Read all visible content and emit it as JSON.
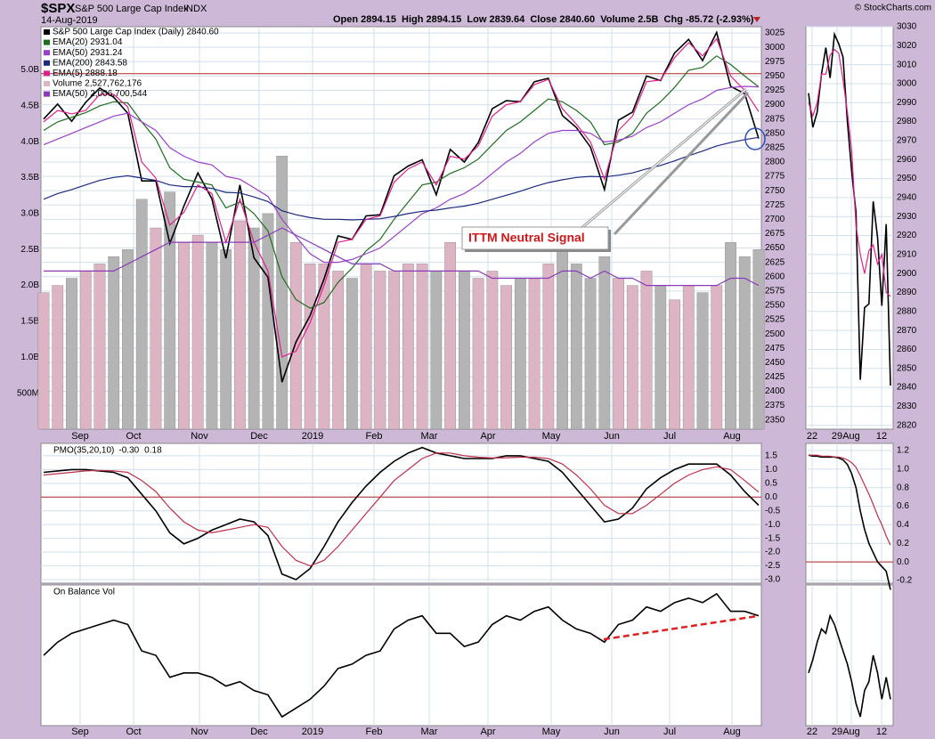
{
  "header": {
    "symbol": "$SPX",
    "name": "S&P 500 Large Cap Index",
    "exchange": "INDX",
    "date": "14-Aug-2019",
    "quote": "Open 2894.15  High 2894.15  Low 2839.64  Close 2840.60  Volume 2.5B  Chg -85.72 (-2.93%)",
    "credit": "© StockCharts.com"
  },
  "annotation": "ITTM Neutral Signal",
  "chart_data": [
    {
      "type": "line",
      "grid": true,
      "legend": "top-left",
      "ylim": [
        2334,
        3036
      ],
      "yticks": [
        2350,
        2375,
        2400,
        2425,
        2450,
        2475,
        2500,
        2525,
        2550,
        2575,
        2600,
        2625,
        2650,
        2675,
        2700,
        2725,
        2750,
        2775,
        2800,
        2825,
        2850,
        2875,
        2900,
        2925,
        2950,
        2975,
        3000,
        3025
      ],
      "y2lim": [
        0,
        5.6
      ],
      "y2ticks": [
        {
          "value": 0.5,
          "label": "500M"
        },
        {
          "value": 1,
          "label": "1.0B"
        },
        {
          "value": 1.5,
          "label": "1.5B"
        },
        {
          "value": 2,
          "label": "2.0B"
        },
        {
          "value": 2.5,
          "label": "2.5B"
        },
        {
          "value": 3,
          "label": "3.0B"
        },
        {
          "value": 3.5,
          "label": "3.5B"
        },
        {
          "value": 4,
          "label": "4.0B"
        },
        {
          "value": 4.5,
          "label": "4.5B"
        },
        {
          "value": 5,
          "label": "5.0B"
        }
      ],
      "reference_line": 2954,
      "reference_color": "#b02828",
      "xlabels": [
        "Sep",
        "Oct",
        "Nov",
        "Dec",
        "2019",
        "Feb",
        "Mar",
        "Apr",
        "May",
        "Jun",
        "Jul",
        "Aug"
      ],
      "series": [
        {
          "name": "S&P 500 Large Cap Index (Daily) 2840.60",
          "color": "#000000",
          "values": [
            2875,
            2901,
            2871,
            2904,
            2929,
            2913,
            2885,
            2767,
            2767,
            2658,
            2723,
            2781,
            2736,
            2632,
            2760,
            2633,
            2599,
            2416,
            2486,
            2532,
            2596,
            2671,
            2665,
            2706,
            2708,
            2776,
            2793,
            2804,
            2743,
            2822,
            2800,
            2834,
            2893,
            2907,
            2905,
            2940,
            2946,
            2881,
            2860,
            2826,
            2752,
            2873,
            2887,
            2950,
            2942,
            2990,
            3014,
            2977,
            3026,
            2932,
            2919,
            2841
          ]
        },
        {
          "name": "EMA(20) 2931.04",
          "color": "#1f6e1f",
          "values": [
            2855,
            2870,
            2878,
            2886,
            2898,
            2905,
            2903,
            2870,
            2840,
            2790,
            2770,
            2765,
            2760,
            2720,
            2730,
            2710,
            2680,
            2600,
            2560,
            2545,
            2555,
            2590,
            2615,
            2645,
            2665,
            2700,
            2730,
            2760,
            2765,
            2780,
            2790,
            2805,
            2830,
            2855,
            2870,
            2890,
            2910,
            2905,
            2890,
            2870,
            2830,
            2835,
            2850,
            2885,
            2905,
            2930,
            2960,
            2965,
            2985,
            2970,
            2950,
            2931
          ]
        },
        {
          "name": "EMA(50) 2931.24",
          "color": "#9a3fc8",
          "values": [
            2830,
            2840,
            2850,
            2860,
            2870,
            2880,
            2885,
            2870,
            2855,
            2825,
            2810,
            2800,
            2795,
            2775,
            2770,
            2755,
            2740,
            2700,
            2670,
            2640,
            2625,
            2625,
            2630,
            2640,
            2650,
            2670,
            2690,
            2710,
            2720,
            2735,
            2745,
            2760,
            2780,
            2800,
            2815,
            2835,
            2850,
            2855,
            2855,
            2850,
            2835,
            2838,
            2845,
            2860,
            2870,
            2885,
            2900,
            2910,
            2925,
            2930,
            2932,
            2931
          ]
        },
        {
          "name": "EMA(200) 2843.58",
          "color": "#1c2a80",
          "values": [
            2735,
            2745,
            2752,
            2760,
            2768,
            2773,
            2776,
            2772,
            2768,
            2760,
            2757,
            2757,
            2754,
            2747,
            2746,
            2739,
            2731,
            2715,
            2708,
            2703,
            2700,
            2700,
            2699,
            2700,
            2701,
            2705,
            2710,
            2714,
            2716,
            2720,
            2723,
            2728,
            2735,
            2742,
            2749,
            2757,
            2764,
            2769,
            2773,
            2775,
            2774,
            2777,
            2781,
            2788,
            2794,
            2802,
            2811,
            2819,
            2828,
            2834,
            2839,
            2843
          ]
        },
        {
          "name": "EMA(5) 2888.18",
          "color": "#e0208c",
          "values": [
            2870,
            2890,
            2884,
            2890,
            2918,
            2918,
            2896,
            2800,
            2772,
            2690,
            2712,
            2760,
            2745,
            2660,
            2735,
            2660,
            2610,
            2460,
            2470,
            2520,
            2585,
            2660,
            2665,
            2700,
            2706,
            2765,
            2788,
            2800,
            2760,
            2810,
            2805,
            2828,
            2880,
            2900,
            2905,
            2935,
            2944,
            2893,
            2866,
            2835,
            2770,
            2855,
            2880,
            2940,
            2943,
            2982,
            3008,
            2985,
            3015,
            2950,
            2925,
            2888
          ]
        },
        {
          "name": "Volume 2,527,762,176",
          "type": "bar",
          "axis": "y2",
          "color": "#dcb4c4",
          "down_color": "#b4b4b4",
          "values": [
            1.9,
            2.0,
            2.1,
            2.2,
            2.3,
            2.4,
            2.5,
            3.2,
            2.8,
            3.3,
            2.6,
            2.7,
            2.6,
            2.5,
            2.9,
            2.8,
            3.0,
            3.8,
            2.6,
            2.3,
            2.3,
            2.2,
            2.1,
            2.3,
            2.2,
            2.2,
            2.3,
            2.3,
            2.2,
            2.6,
            2.2,
            2.1,
            2.2,
            2.0,
            2.1,
            2.1,
            2.3,
            2.6,
            2.3,
            2.1,
            2.4,
            2.1,
            2.0,
            2.2,
            2.0,
            1.8,
            2.0,
            1.9,
            2.0,
            2.6,
            2.4,
            2.5
          ]
        },
        {
          "name": "EMA(50) 2,006,700,544",
          "axis": "y2",
          "color": "#8a3ab8",
          "values": [
            2.2,
            2.2,
            2.2,
            2.2,
            2.2,
            2.2,
            2.3,
            2.4,
            2.5,
            2.6,
            2.6,
            2.6,
            2.6,
            2.6,
            2.6,
            2.6,
            2.7,
            2.8,
            2.7,
            2.6,
            2.5,
            2.4,
            2.3,
            2.3,
            2.3,
            2.2,
            2.2,
            2.2,
            2.2,
            2.2,
            2.2,
            2.2,
            2.1,
            2.1,
            2.1,
            2.1,
            2.1,
            2.2,
            2.2,
            2.1,
            2.2,
            2.1,
            2.1,
            2.0,
            2.0,
            2.0,
            2.0,
            2.0,
            2.0,
            2.1,
            2.1,
            2.0
          ]
        }
      ]
    },
    {
      "type": "line",
      "title": "PMO(35,20,10)",
      "grid": true,
      "ylim": [
        -3.13,
        1.95
      ],
      "yticks": [
        1.5,
        {
          "value": 1,
          "label": "1.0"
        },
        0.5,
        {
          "value": 0,
          "label": "0.0"
        },
        -0.5,
        {
          "value": -1,
          "label": "-1.0"
        },
        -1.5,
        {
          "value": -2,
          "label": "-2.0"
        },
        -2.5,
        {
          "value": -3,
          "label": "-3.0"
        }
      ],
      "reference_line": 0,
      "reference_color": "#b02828",
      "series": [
        {
          "name": "-0.30",
          "color": "#000000",
          "values": [
            0.9,
            0.95,
            1.0,
            1.0,
            0.95,
            0.9,
            0.7,
            0.1,
            -0.5,
            -1.3,
            -1.7,
            -1.5,
            -1.2,
            -1.0,
            -0.8,
            -0.9,
            -1.4,
            -2.8,
            -3.0,
            -2.6,
            -1.8,
            -0.9,
            -0.2,
            0.4,
            0.9,
            1.3,
            1.6,
            1.8,
            1.6,
            1.5,
            1.4,
            1.4,
            1.4,
            1.5,
            1.5,
            1.4,
            1.3,
            0.9,
            0.3,
            -0.3,
            -0.9,
            -0.8,
            -0.4,
            0.3,
            0.7,
            1.0,
            1.2,
            1.2,
            1.2,
            0.8,
            0.2,
            -0.3
          ]
        },
        {
          "name": "0.18",
          "color": "#c0304a",
          "values": [
            0.8,
            0.85,
            0.9,
            0.95,
            0.97,
            0.95,
            0.9,
            0.6,
            0.2,
            -0.4,
            -0.9,
            -1.2,
            -1.3,
            -1.2,
            -1.1,
            -1.0,
            -1.1,
            -1.8,
            -2.3,
            -2.5,
            -2.3,
            -1.8,
            -1.2,
            -0.6,
            0.0,
            0.6,
            1.0,
            1.4,
            1.6,
            1.6,
            1.5,
            1.45,
            1.42,
            1.43,
            1.45,
            1.45,
            1.4,
            1.2,
            0.8,
            0.3,
            -0.3,
            -0.6,
            -0.6,
            -0.3,
            0.1,
            0.5,
            0.8,
            1.0,
            1.1,
            1.0,
            0.6,
            0.18
          ]
        }
      ]
    },
    {
      "type": "line",
      "title": "On Balance Vol",
      "grid": true,
      "ylim": [
        0,
        160
      ],
      "xlabels": [
        "Sep",
        "Oct",
        "Nov",
        "Dec",
        "2019",
        "Feb",
        "Mar",
        "Apr",
        "May",
        "Jun",
        "Jul",
        "Aug"
      ],
      "series": [
        {
          "color": "#000000",
          "values": [
            80,
            95,
            105,
            110,
            115,
            120,
            115,
            85,
            80,
            55,
            60,
            60,
            55,
            45,
            50,
            40,
            35,
            10,
            20,
            30,
            45,
            65,
            70,
            80,
            85,
            110,
            120,
            125,
            105,
            105,
            90,
            95,
            115,
            125,
            120,
            130,
            135,
            120,
            110,
            105,
            95,
            115,
            120,
            135,
            130,
            140,
            145,
            140,
            150,
            130,
            130,
            125
          ]
        }
      ]
    },
    {
      "type": "line",
      "grid": true,
      "ylim": [
        2818,
        3030
      ],
      "yticks": [
        2820,
        2830,
        2840,
        2850,
        2860,
        2870,
        2880,
        2890,
        2900,
        2910,
        2920,
        2930,
        2940,
        2950,
        2960,
        2970,
        2980,
        2990,
        3000,
        3010,
        3020,
        3030
      ],
      "xlabels": [
        "22",
        "29",
        "Aug",
        "12"
      ],
      "series": [
        {
          "color": "#000000",
          "values": [
            2995,
            2977,
            2985,
            3005,
            3019,
            3003,
            3026,
            3021,
            3014,
            2980,
            2954,
            2932,
            2844,
            2882,
            2884,
            2938,
            2919,
            2883,
            2926,
            2841
          ]
        },
        {
          "color": "#e0208c",
          "values": [
            2990,
            2983,
            2990,
            3005,
            3005,
            3015,
            3018,
            3016,
            3002,
            2985,
            2965,
            2925,
            2910,
            2900,
            2912,
            2915,
            2905,
            2910,
            2890,
            2888
          ]
        }
      ]
    },
    {
      "type": "line",
      "grid": true,
      "ylim": [
        -0.229,
        1.277
      ],
      "yticks": [
        1.2,
        {
          "value": 1,
          "label": "1.0"
        },
        0.8,
        0.6,
        0.4,
        0.2,
        {
          "value": 0,
          "label": "0.0"
        },
        -0.2
      ],
      "reference_line": 0,
      "reference_color": "#b02828",
      "series": [
        {
          "color": "#000000",
          "values": [
            1.15,
            1.14,
            1.14,
            1.13,
            1.13,
            1.13,
            1.13,
            1.12,
            1.1,
            1.05,
            0.95,
            0.8,
            0.55,
            0.35,
            0.2,
            0.1,
            0.0,
            -0.05,
            -0.1,
            -0.3
          ]
        },
        {
          "color": "#c0304a",
          "values": [
            1.15,
            1.15,
            1.15,
            1.14,
            1.14,
            1.14,
            1.13,
            1.13,
            1.12,
            1.1,
            1.07,
            1.02,
            0.93,
            0.83,
            0.73,
            0.62,
            0.5,
            0.4,
            0.28,
            0.18
          ]
        }
      ]
    },
    {
      "type": "line",
      "grid": true,
      "ylim": [
        0,
        160
      ],
      "xlabels": [
        "22",
        "29",
        "Aug",
        "12"
      ],
      "series": [
        {
          "color": "#000000",
          "values": [
            60,
            75,
            95,
            110,
            105,
            125,
            115,
            100,
            85,
            70,
            50,
            25,
            10,
            40,
            50,
            80,
            60,
            30,
            55,
            30
          ]
        }
      ]
    }
  ]
}
